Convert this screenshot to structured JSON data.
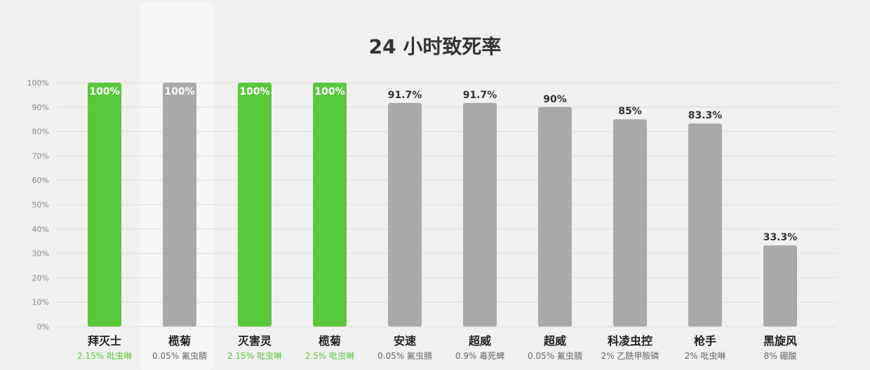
{
  "chart_data": {
    "type": "bar",
    "title": "24 小时致死率",
    "xlabel": "",
    "ylabel": "",
    "ylim": [
      0,
      100
    ],
    "y_ticks": [
      0,
      10,
      20,
      30,
      40,
      50,
      60,
      70,
      80,
      90,
      100
    ],
    "y_tick_suffix": "%",
    "grid": true,
    "legend": "none",
    "colors": {
      "highlight": "#5ac83c",
      "default": "#a9a9a9",
      "value_label_on_bar": "#ffffff",
      "value_label_above": "#333333",
      "subtitle_default": "#666666",
      "subtitle_highlight": "#5ac83c",
      "grid": "#dcdcdc",
      "axis_text": "#888888",
      "title": "#333333"
    },
    "categories": [
      "拜灭士",
      "榄菊",
      "灭害灵",
      "榄菊",
      "安速",
      "超威",
      "超威",
      "科凌虫控",
      "枪手",
      "黑旋风"
    ],
    "subtitles": [
      "2.15% 吡虫啉",
      "0.05% 氟虫腈",
      "2.15% 吡虫啉",
      "2.5% 吡虫啉",
      "0.05% 氟虫腈",
      "0.9% 毒死蜱",
      "0.05% 氟虫腈",
      "2% 乙酰甲胺磷",
      "2% 吡虫啉",
      "8% 硼酸"
    ],
    "values": [
      100,
      100,
      100,
      100,
      91.7,
      91.7,
      90,
      85,
      83.3,
      33.3
    ],
    "value_labels": [
      "100%",
      "100%",
      "100%",
      "100%",
      "91.7%",
      "91.7%",
      "90%",
      "85%",
      "83.3%",
      "33.3%"
    ],
    "highlighted": [
      true,
      false,
      true,
      true,
      false,
      false,
      false,
      false,
      false,
      false
    ]
  }
}
